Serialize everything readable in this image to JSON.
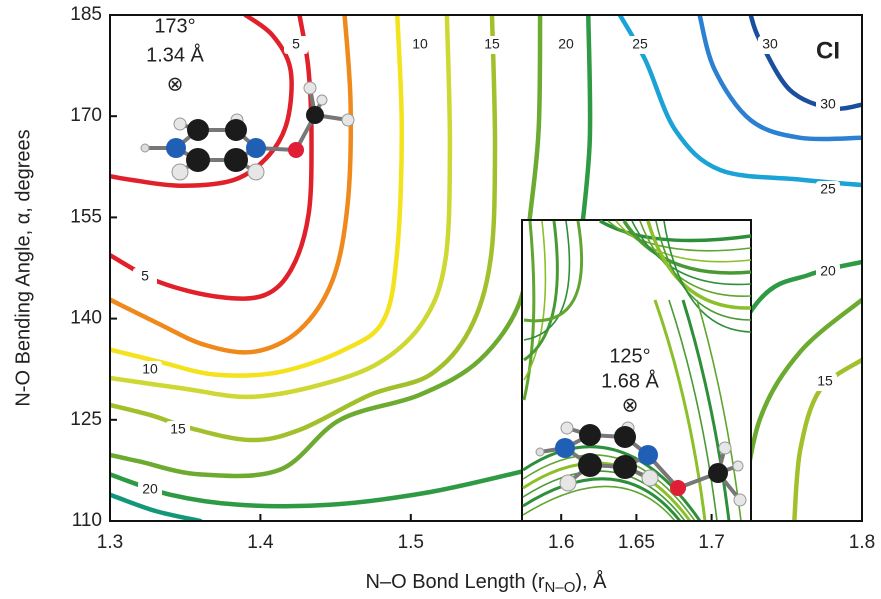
{
  "chart_data": {
    "type": "contour",
    "xlabel": "N–O Bond Length (r",
    "xlabel_sub": "N–O",
    "xlabel_end": "),  Å",
    "ylabel": "N-O Bending Angle, α, degrees",
    "corner_label": "CI",
    "xlim": [
      1.3,
      1.8
    ],
    "ylim": [
      110,
      185
    ],
    "xticks": [
      1.3,
      1.4,
      1.5,
      1.6,
      1.65,
      1.7,
      1.8
    ],
    "yticks": [
      110,
      125,
      140,
      155,
      170,
      185
    ],
    "contours": [
      {
        "level": 5,
        "color": "#e0202a",
        "x": [
          1.39,
          1.408,
          1.42,
          1.418,
          1.406,
          1.383,
          1.347,
          1.313,
          1.3,
          null,
          1.3,
          1.333,
          1.373,
          1.403,
          1.421,
          1.432,
          1.434,
          1.432,
          1.426
        ],
        "y": [
          185,
          182.0,
          176.9,
          169.4,
          164.3,
          160.6,
          159.7,
          160.6,
          161.1,
          null,
          149.4,
          145.4,
          143.2,
          143.5,
          147.5,
          155.4,
          166.5,
          176.9,
          185
        ]
      },
      {
        "color": "#f0891c",
        "x": [
          1.456,
          1.46,
          1.458,
          1.448,
          1.426,
          1.396,
          1.363,
          1.33,
          1.3
        ],
        "y": [
          185,
          171.7,
          156.9,
          145.7,
          138.3,
          135.1,
          136.1,
          139.5,
          142.8
        ]
      },
      {
        "level": 10,
        "color": "#f3e21c",
        "x": [
          1.491,
          1.494,
          1.491,
          1.482,
          1.456,
          1.413,
          1.37,
          1.333,
          1.3
        ],
        "y": [
          185,
          167.9,
          150.2,
          139.8,
          135.4,
          132.1,
          131.7,
          133.6,
          135.4
        ]
      },
      {
        "color": "#cdd832",
        "x": [
          1.524,
          1.526,
          1.523,
          1.509,
          1.48,
          1.44,
          1.393,
          1.347,
          1.3
        ],
        "y": [
          185,
          165.0,
          148.7,
          139.8,
          133.6,
          130.2,
          128.4,
          129.7,
          131.2
        ]
      },
      {
        "level": 15,
        "color": "#a2c02c",
        "x": [
          1.554,
          1.556,
          1.553,
          1.539,
          1.513,
          1.473,
          1.426,
          1.393,
          1.353,
          1.327,
          1.3,
          null,
          1.8,
          1.772,
          1.759,
          1.755
        ],
        "y": [
          185,
          165.0,
          148.7,
          138.3,
          131.7,
          128.7,
          123.5,
          122.0,
          123.8,
          125.7,
          127.2,
          null,
          133.9,
          129.4,
          120.6,
          110
        ]
      },
      {
        "color": "#6caa30",
        "x": [
          1.586,
          1.585,
          1.579,
          1.573,
          1.546,
          1.506,
          1.453,
          1.413,
          1.36,
          1.32,
          1.3,
          null,
          1.8,
          1.759,
          1.732,
          1.719
        ],
        "y": [
          185,
          167.9,
          154.6,
          142.8,
          133.9,
          128.7,
          125.0,
          117.6,
          116.9,
          118.8,
          119.8,
          null,
          142.8,
          135.1,
          125.0,
          110
        ]
      },
      {
        "level": 20,
        "color": "#2e9a44",
        "x": [
          1.618,
          1.619,
          1.613,
          null,
          1.3,
          1.34,
          1.386,
          1.446,
          1.513,
          1.579,
          null,
          1.639,
          1.692,
          1.732,
          1.765,
          1.8
        ],
        "y": [
          185,
          166.5,
          151.7,
          null,
          116.9,
          113.9,
          112.4,
          112.4,
          114.3,
          117.6,
          null,
          110,
          128.0,
          142.8,
          146.5,
          148.4
        ]
      },
      {
        "color": "#12977a",
        "x": [
          1.3,
          1.33,
          1.36
        ],
        "y": [
          113.9,
          111.5,
          110
        ]
      },
      {
        "level": 25,
        "color": "#1ba3d8",
        "x": [
          1.639,
          1.656,
          1.676,
          1.706,
          1.759,
          1.8
        ],
        "y": [
          185,
          178.3,
          167.9,
          162.0,
          160.6,
          159.8
        ]
      },
      {
        "color": "#2c80d2",
        "x": [
          1.692,
          1.702,
          1.726,
          1.759,
          1.8
        ],
        "y": [
          185,
          176.9,
          169.4,
          166.8,
          166.8
        ]
      },
      {
        "level": 30,
        "color": "#1a4fa0",
        "x": [
          1.726,
          1.732,
          1.752,
          1.779,
          1.8
        ],
        "y": [
          185,
          181.3,
          173.9,
          171.2,
          171.7
        ]
      }
    ],
    "annotations": [
      {
        "angle": "173°",
        "length": "1.34 Å",
        "marker": "⊗"
      },
      {
        "angle": "125°",
        "length": "1.68 Å",
        "marker": "⊗"
      }
    ]
  }
}
